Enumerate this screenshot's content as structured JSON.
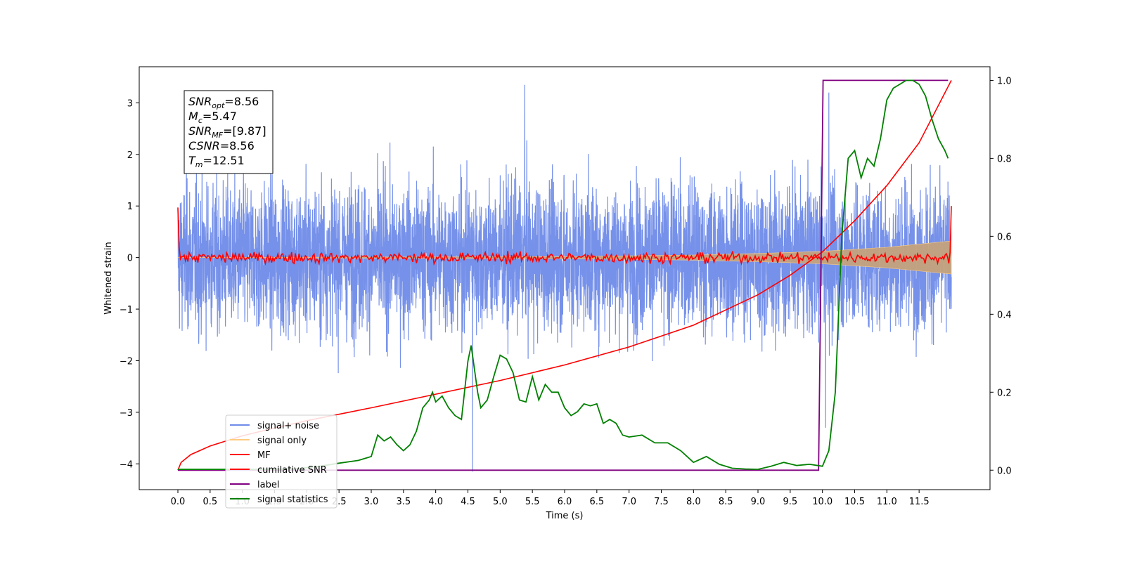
{
  "chart_data": {
    "type": "line",
    "xlabel": "Time (s)",
    "ylabel": "Whitened strain",
    "xlim": [
      -0.6,
      12.6
    ],
    "ylim": [
      -4.5,
      3.7
    ],
    "y2lim": [
      -0.05,
      1.035
    ],
    "grid": false,
    "x_ticks": [
      0.0,
      0.5,
      1.0,
      1.5,
      2.0,
      2.5,
      3.0,
      3.5,
      4.0,
      4.5,
      5.0,
      5.5,
      6.0,
      6.5,
      7.0,
      7.5,
      8.0,
      8.5,
      9.0,
      9.5,
      10.0,
      10.5,
      11.0,
      11.5
    ],
    "x_tick_labels": [
      "0.0",
      "0.5",
      "1.0",
      "1.5",
      "2.0",
      "2.5",
      "3.0",
      "3.5",
      "4.0",
      "4.5",
      "5.0",
      "5.5",
      "6.0",
      "6.5",
      "7.0",
      "7.5",
      "8.0",
      "8.5",
      "9.0",
      "9.5",
      "10.0",
      "10.5",
      "11.0",
      "11.5"
    ],
    "y_ticks": [
      3,
      2,
      1,
      0,
      -1,
      -2,
      -3,
      -4
    ],
    "y_tick_labels": [
      "3",
      "2",
      "1",
      "0",
      "−1",
      "−2",
      "−3",
      "−4"
    ],
    "y2_ticks": [
      1.0,
      0.8,
      0.6,
      0.4,
      0.2,
      0.0
    ],
    "y2_tick_labels": [
      "1.0",
      "0.8",
      "0.6",
      "0.4",
      "0.2",
      "0.0"
    ],
    "annotation": [
      {
        "main": "SNR",
        "sub": "opt",
        "rest": "=8.56"
      },
      {
        "main": "M",
        "sub": "c",
        "rest": "=5.47"
      },
      {
        "main": "SNR",
        "sub": "MF",
        "rest": "=[9.87]"
      },
      {
        "main": "CSNR",
        "sub": "",
        "rest": "=8.56"
      },
      {
        "main": "T",
        "sub": "m",
        "rest": "=12.51"
      }
    ],
    "legend_position": "lower-left",
    "series": [
      {
        "name": "signal+ noise",
        "color": "#6f8be8",
        "axis": "left",
        "kind": "noise",
        "x_range": [
          0.0,
          12.0
        ],
        "amplitude": 1.0,
        "ylim": [
          -3.2,
          3.35
        ],
        "spikes": [
          {
            "x": 4.57,
            "y": -4.15
          },
          {
            "x": 10.05,
            "y": -3.3
          },
          {
            "x": 10.1,
            "y": 3.2
          },
          {
            "x": 5.38,
            "y": 3.35
          }
        ]
      },
      {
        "name": "signal only",
        "color": "#ffcc80",
        "axis": "left",
        "kind": "envelope",
        "x": [
          0.0,
          6.0,
          8.0,
          9.0,
          10.0,
          11.0,
          12.0
        ],
        "upper": [
          0.0,
          0.02,
          0.05,
          0.08,
          0.12,
          0.2,
          0.32
        ],
        "lower": [
          0.0,
          -0.02,
          -0.05,
          -0.08,
          -0.12,
          -0.2,
          -0.32
        ]
      },
      {
        "name": "MF",
        "color": "#ff0000",
        "axis": "left",
        "kind": "jitter",
        "x_range": [
          0.0,
          12.0
        ],
        "amplitude": 0.12,
        "start": 0.97,
        "end": 1.0
      },
      {
        "name": "cumilative SNR",
        "color": "#ff0000",
        "axis": "right",
        "x": [
          0.0,
          0.05,
          0.2,
          0.5,
          1.0,
          1.5,
          2.0,
          3.0,
          4.0,
          5.0,
          6.0,
          7.0,
          8.0,
          9.0,
          9.5,
          10.0,
          10.5,
          11.0,
          11.5,
          12.0
        ],
        "values": [
          0.0,
          0.02,
          0.04,
          0.062,
          0.088,
          0.108,
          0.127,
          0.16,
          0.195,
          0.23,
          0.27,
          0.316,
          0.372,
          0.45,
          0.5,
          0.56,
          0.64,
          0.73,
          0.84,
          1.0
        ]
      },
      {
        "name": "label",
        "color": "#800080",
        "axis": "right",
        "x": [
          0.0,
          9.94,
          10.01,
          11.95
        ],
        "values": [
          0.0,
          0.0,
          1.0,
          1.0
        ]
      },
      {
        "name": "signal statistics",
        "color": "#008000",
        "axis": "right",
        "x": [
          0.0,
          1.0,
          1.8,
          2.2,
          2.5,
          2.8,
          2.9,
          3.0,
          3.1,
          3.2,
          3.3,
          3.4,
          3.5,
          3.6,
          3.7,
          3.8,
          3.9,
          3.95,
          4.0,
          4.1,
          4.2,
          4.3,
          4.4,
          4.5,
          4.55,
          4.6,
          4.65,
          4.7,
          4.8,
          4.9,
          5.0,
          5.1,
          5.2,
          5.3,
          5.4,
          5.5,
          5.6,
          5.7,
          5.8,
          5.9,
          6.0,
          6.1,
          6.2,
          6.3,
          6.4,
          6.5,
          6.6,
          6.7,
          6.8,
          6.9,
          7.0,
          7.2,
          7.4,
          7.6,
          7.8,
          8.0,
          8.2,
          8.4,
          8.6,
          8.8,
          9.0,
          9.2,
          9.4,
          9.6,
          9.8,
          10.0,
          10.1,
          10.2,
          10.3,
          10.4,
          10.5,
          10.6,
          10.7,
          10.8,
          10.9,
          11.0,
          11.1,
          11.2,
          11.3,
          11.4,
          11.5,
          11.6,
          11.7,
          11.8,
          11.9,
          11.95
        ],
        "values": [
          0.002,
          0.002,
          0.003,
          0.01,
          0.018,
          0.025,
          0.03,
          0.035,
          0.09,
          0.075,
          0.085,
          0.065,
          0.05,
          0.065,
          0.1,
          0.16,
          0.18,
          0.2,
          0.175,
          0.19,
          0.16,
          0.14,
          0.13,
          0.28,
          0.32,
          0.26,
          0.2,
          0.16,
          0.18,
          0.24,
          0.295,
          0.285,
          0.25,
          0.18,
          0.175,
          0.24,
          0.18,
          0.22,
          0.2,
          0.2,
          0.16,
          0.14,
          0.15,
          0.17,
          0.165,
          0.17,
          0.12,
          0.13,
          0.12,
          0.09,
          0.085,
          0.09,
          0.07,
          0.07,
          0.05,
          0.02,
          0.035,
          0.015,
          0.005,
          0.003,
          0.002,
          0.01,
          0.02,
          0.012,
          0.015,
          0.01,
          0.05,
          0.2,
          0.6,
          0.8,
          0.82,
          0.75,
          0.8,
          0.78,
          0.85,
          0.95,
          0.98,
          0.99,
          1.0,
          1.0,
          0.99,
          0.96,
          0.9,
          0.85,
          0.82,
          0.8
        ]
      }
    ]
  }
}
